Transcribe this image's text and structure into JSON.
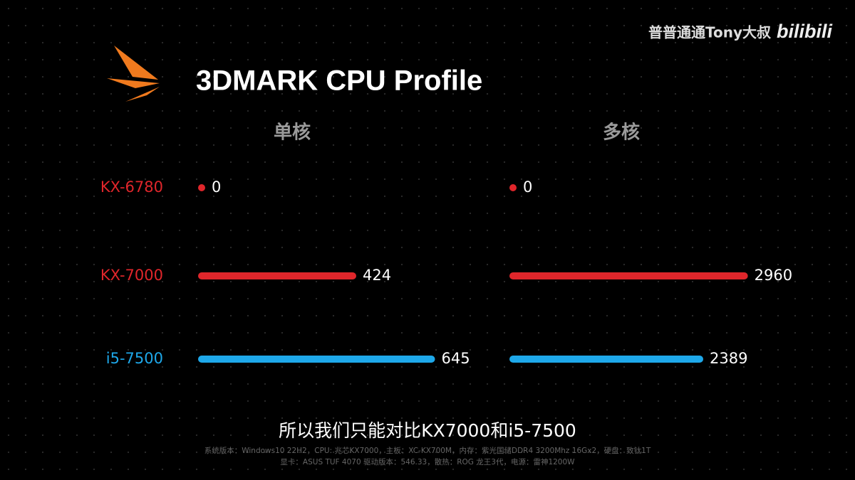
{
  "chart_data": {
    "type": "bar",
    "title": "3DMARK CPU Profile",
    "categories": [
      "KX-6780",
      "KX-7000",
      "i5-7500"
    ],
    "colors": [
      "#e0262b",
      "#e0262b",
      "#1ea8ea"
    ],
    "series": [
      {
        "name": "单核",
        "values": [
          0,
          424,
          645
        ],
        "xlim": [
          0,
          680
        ]
      },
      {
        "name": "多核",
        "values": [
          0,
          2960,
          2389
        ],
        "xlim": [
          0,
          3100
        ]
      }
    ]
  },
  "watermark": {
    "channel": "普普通通Tony大叔",
    "site": "bilibili"
  },
  "caption": "所以我们只能对比KX7000和i5-7500",
  "footnote": [
    "系统版本：Windows10 22H2，CPU: 兆芯KX7000，主板：XC-KX700M，内存：紫光国储DDR4 3200Mhz 16Gx2，硬盘：致钛1T",
    "显卡：ASUS TUF 4070 驱动版本：546.33，散热：ROG 龙王3代，电源：雷神1200W"
  ]
}
